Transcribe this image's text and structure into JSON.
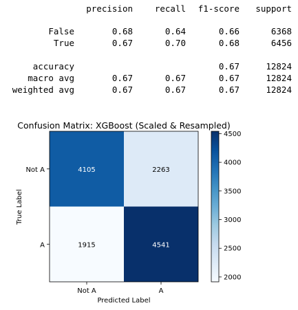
{
  "report": {
    "headers": [
      "precision",
      "recall",
      "f1-score",
      "support"
    ],
    "rows": [
      {
        "label": "False",
        "values": [
          "0.68",
          "0.64",
          "0.66",
          "6368"
        ]
      },
      {
        "label": "True",
        "values": [
          "0.67",
          "0.70",
          "0.68",
          "6456"
        ]
      },
      {
        "label": "accuracy",
        "values": [
          "",
          "",
          "0.67",
          "12824"
        ]
      },
      {
        "label": "macro avg",
        "values": [
          "0.67",
          "0.67",
          "0.67",
          "12824"
        ]
      },
      {
        "label": "weighted avg",
        "values": [
          "0.67",
          "0.67",
          "0.67",
          "12824"
        ]
      }
    ]
  },
  "chart_data": {
    "type": "heatmap",
    "title": "Confusion Matrix: XGBoost (Scaled & Resampled)",
    "xlabel": "Predicted Label",
    "ylabel": "True Label",
    "x_categories": [
      "Not A",
      "A"
    ],
    "y_categories": [
      "Not A",
      "A"
    ],
    "values": [
      [
        4105,
        2263
      ],
      [
        1915,
        4541
      ]
    ],
    "colormap": "Blues",
    "colorbar": {
      "range": [
        1915,
        4541
      ],
      "ticks": [
        2000,
        2500,
        3000,
        3500,
        4000,
        4500
      ]
    }
  }
}
